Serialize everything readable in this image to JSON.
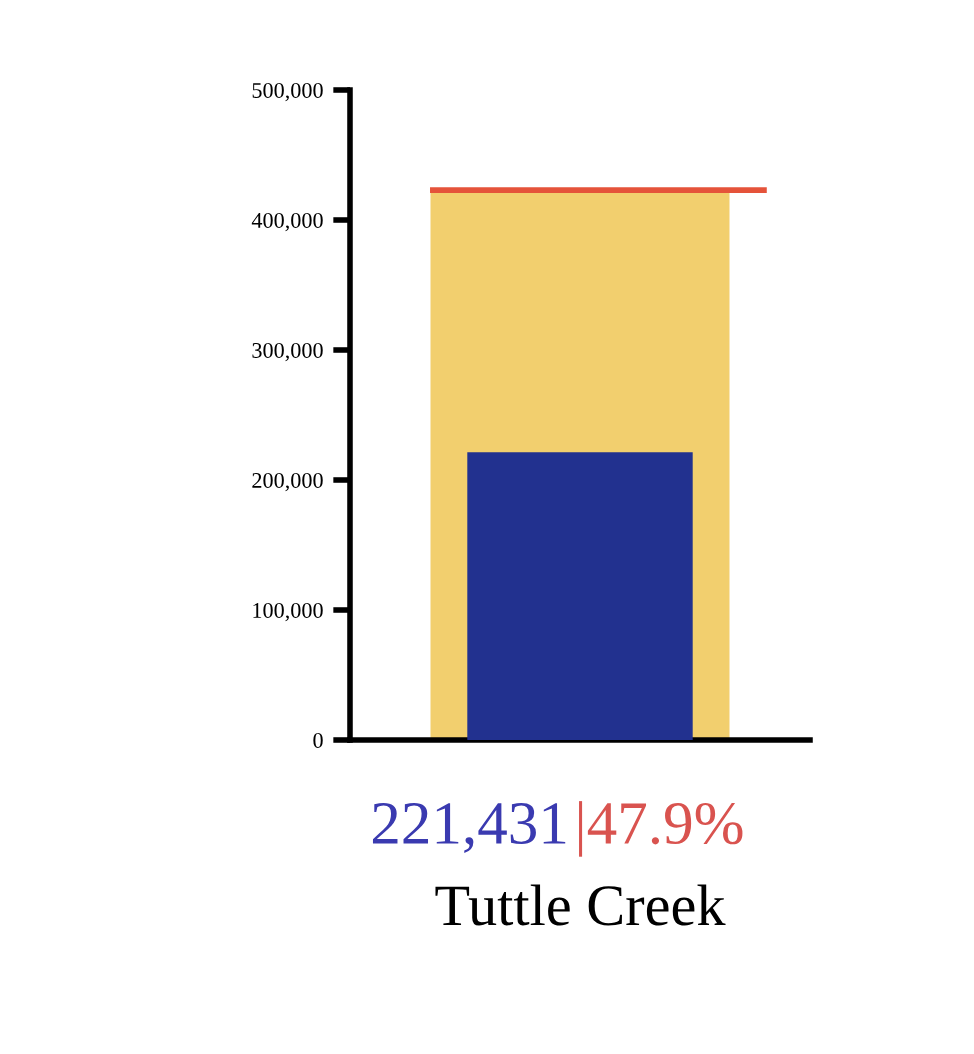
{
  "chart_data": {
    "type": "bar",
    "categories": [
      "Tuttle Creek"
    ],
    "series": [
      {
        "color": "#f2cf6e",
        "values": [
          423000
        ]
      },
      {
        "color": "#22318f",
        "values": [
          221431
        ],
        "value_labels": [
          "221,431"
        ]
      }
    ],
    "ylim": [
      0,
      500000
    ],
    "yticks": [
      {
        "value": 0,
        "label": "0"
      },
      {
        "value": 100000,
        "label": "100,000"
      },
      {
        "value": 200000,
        "label": "200,000"
      },
      {
        "value": 300000,
        "label": "300,000"
      },
      {
        "value": 400000,
        "label": "400,000"
      },
      {
        "value": 500000,
        "label": "500,000"
      }
    ],
    "ref_lines": [
      {
        "axis": "y",
        "value": 423000,
        "color": "#e5533a"
      }
    ],
    "annotations": [
      "|47.9%"
    ],
    "grid": false,
    "legend": false
  }
}
